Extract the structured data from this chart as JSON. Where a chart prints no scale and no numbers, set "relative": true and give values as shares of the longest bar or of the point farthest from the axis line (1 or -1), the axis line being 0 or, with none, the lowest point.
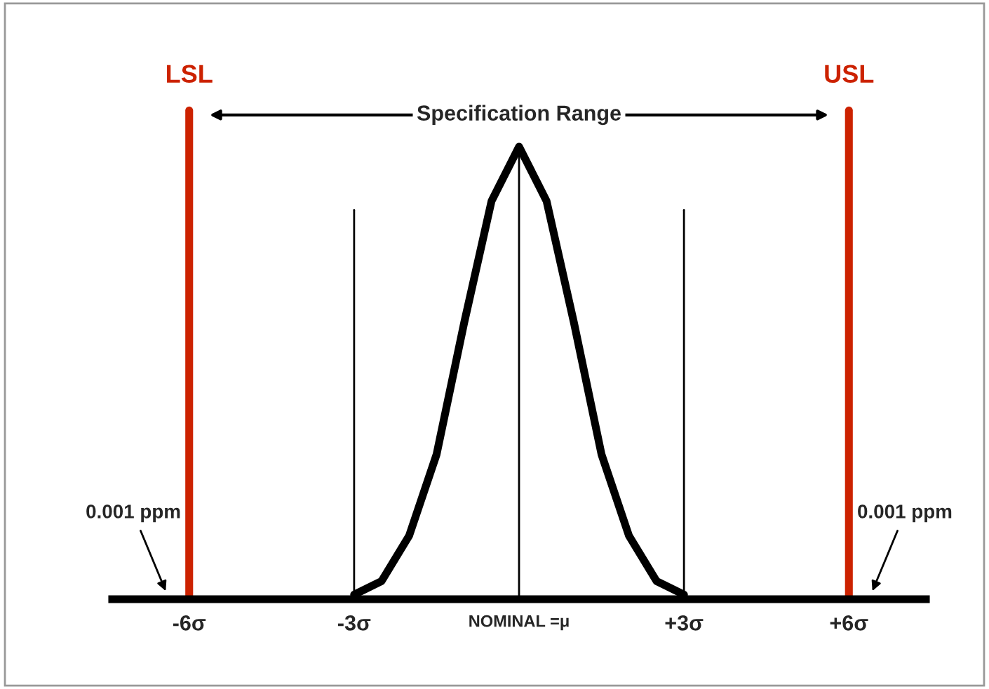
{
  "chart_data": {
    "type": "line",
    "relative": true,
    "x": [
      -3,
      -2.5,
      -2,
      -1.5,
      -1,
      -0.5,
      0,
      0.5,
      1,
      1.5,
      2,
      2.5,
      3
    ],
    "series": [
      {
        "color": "#000000",
        "values": [
          0.01,
          0.04,
          0.14,
          0.32,
          0.61,
          0.88,
          1,
          0.88,
          0.61,
          0.32,
          0.14,
          0.04,
          0.01
        ]
      }
    ],
    "xlim": [
      -7.4,
      7.4
    ],
    "xticks": [
      {
        "value": -6,
        "label": "-6σ"
      },
      {
        "value": -3,
        "label": "-3σ"
      },
      {
        "value": 0,
        "label": "NOMINAL =μ"
      },
      {
        "value": 3,
        "label": "+3σ"
      },
      {
        "value": 6,
        "label": "+6σ"
      }
    ],
    "ref_lines": [
      {
        "axis": "x",
        "value": -6,
        "label": "LSL",
        "color": "#cc2200"
      },
      {
        "axis": "x",
        "value": 6,
        "label": "USL",
        "color": "#cc2200"
      },
      {
        "axis": "x",
        "value": -3,
        "label": null,
        "color": "#000000"
      },
      {
        "axis": "x",
        "value": 0,
        "label": null,
        "color": "#000000"
      },
      {
        "axis": "x",
        "value": 3,
        "label": null,
        "color": "#000000"
      }
    ],
    "annotations": [
      "Specification Range",
      "0.001 ppm",
      "0.001 ppm"
    ],
    "grid": false,
    "legend": false,
    "marker": "none",
    "line_style": "solid"
  }
}
